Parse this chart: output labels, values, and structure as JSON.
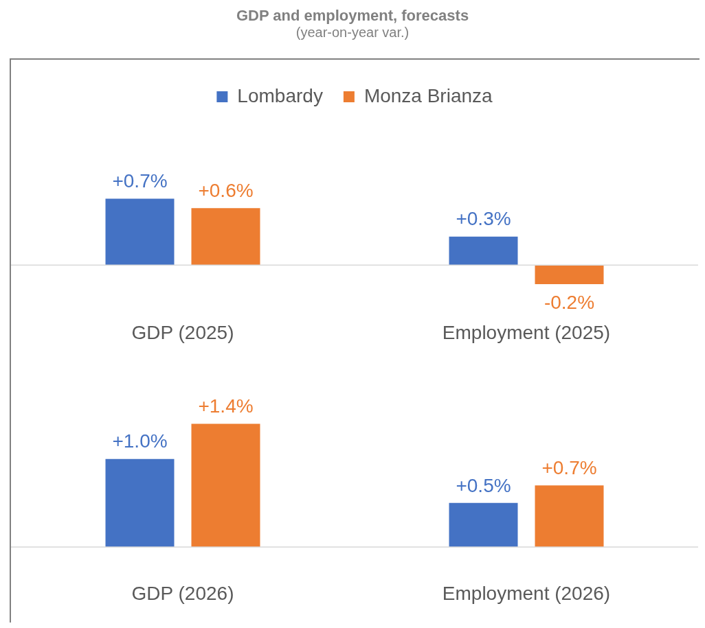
{
  "chart_data": [
    {
      "type": "bar",
      "title": "GDP and employment, forecasts",
      "subtitle": "(year-on-year var.)",
      "categories": [
        "GDP (2025)",
        "Employment (2025)"
      ],
      "legend": "top",
      "series": [
        {
          "name": "Lombardy",
          "color": "#4472c4",
          "values": [
            0.7,
            0.3
          ],
          "value_labels": [
            "+0.7%",
            "+0.3%"
          ]
        },
        {
          "name": "Monza Brianza",
          "color": "#ed7d31",
          "values": [
            0.6,
            -0.2
          ],
          "value_labels": [
            "+0.6%",
            "-0.2%"
          ]
        }
      ]
    },
    {
      "type": "bar",
      "categories": [
        "GDP (2026)",
        "Employment (2026)"
      ],
      "legend": false,
      "series": [
        {
          "color": "#4472c4",
          "values": [
            1.0,
            0.5
          ],
          "value_labels": [
            "+1.0%",
            "+0.5%"
          ]
        },
        {
          "color": "#ed7d31",
          "values": [
            1.4,
            0.7
          ],
          "value_labels": [
            "+1.4%",
            "+0.7%"
          ]
        }
      ]
    }
  ]
}
